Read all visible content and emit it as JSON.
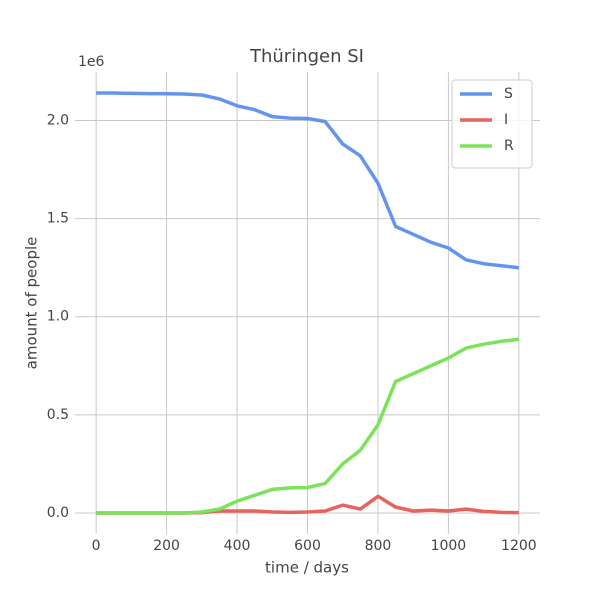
{
  "chart_data": {
    "type": "line",
    "title": "Thüringen SI",
    "x_label": "time / days",
    "y_label": "amount of people",
    "y_offset_label": "1e6",
    "x": [
      0,
      50,
      100,
      150,
      200,
      250,
      300,
      350,
      400,
      450,
      500,
      550,
      600,
      650,
      700,
      750,
      800,
      850,
      900,
      950,
      1000,
      1050,
      1100,
      1150,
      1200
    ],
    "series": [
      {
        "name": "S",
        "color": "#6495ed",
        "values": [
          2.14,
          2.14,
          2.138,
          2.137,
          2.136,
          2.135,
          2.13,
          2.11,
          2.075,
          2.055,
          2.02,
          2.012,
          2.01,
          1.995,
          1.88,
          1.82,
          1.68,
          1.46,
          1.42,
          1.38,
          1.35,
          1.29,
          1.27,
          1.26,
          1.25
        ]
      },
      {
        "name": "I",
        "color": "#e8625f",
        "values": [
          0,
          0,
          0,
          0,
          0,
          0,
          0.002,
          0.01,
          0.01,
          0.01,
          0.005,
          0.003,
          0.005,
          0.01,
          0.04,
          0.02,
          0.085,
          0.03,
          0.01,
          0.015,
          0.01,
          0.02,
          0.008,
          0.003,
          0.002
        ]
      },
      {
        "name": "R",
        "color": "#7be35a",
        "values": [
          0,
          0,
          0,
          0,
          0,
          0,
          0.005,
          0.02,
          0.06,
          0.09,
          0.12,
          0.128,
          0.13,
          0.15,
          0.25,
          0.32,
          0.45,
          0.67,
          0.71,
          0.75,
          0.79,
          0.84,
          0.86,
          0.875,
          0.885
        ]
      }
    ],
    "xlim": [
      -60,
      1260
    ],
    "ylim": [
      -0.107,
      2.247
    ],
    "xticks": [
      0,
      200,
      400,
      600,
      800,
      1000,
      1200
    ],
    "yticks": [
      {
        "value": 0,
        "label": "0.0"
      },
      {
        "value": 0.5,
        "label": "0.5"
      },
      {
        "value": 1,
        "label": "1.0"
      },
      {
        "value": 1.5,
        "label": "1.5"
      },
      {
        "value": 2,
        "label": "2.0"
      }
    ],
    "grid": true,
    "legend": "upper right"
  }
}
